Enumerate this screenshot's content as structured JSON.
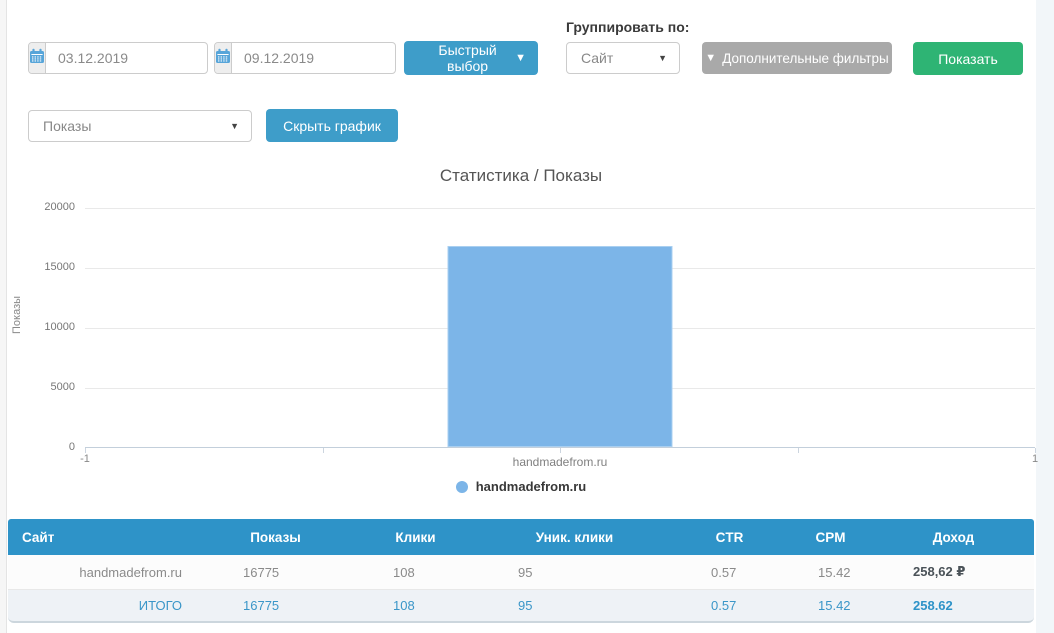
{
  "toolbar": {
    "date_from": "03.12.2019",
    "date_to": "09.12.2019",
    "quick_select": "Быстрый выбор",
    "group_by_label": "Группировать по:",
    "group_by_value": "Сайт",
    "additional_filters": "Дополнительные фильтры",
    "show": "Показать"
  },
  "chart_controls": {
    "metric": "Показы",
    "hide_chart": "Скрыть график"
  },
  "chart_data": {
    "type": "bar",
    "title": "Статистика / Показы",
    "ylabel": "Показы",
    "categories": [
      "handmadefrom.ru"
    ],
    "values": [
      16775
    ],
    "series": [
      {
        "name": "handmadefrom.ru",
        "values": [
          16775
        ],
        "color": "#7cb5e8"
      }
    ],
    "ylim": [
      0,
      20000
    ],
    "ytick_labels": [
      "20000",
      "15000",
      "10000",
      "5000",
      "0"
    ],
    "xlim": [
      -1,
      1
    ],
    "x_min_label": "-1",
    "x_max_label": "1",
    "grid": true,
    "legend_position": "bottom",
    "legend": [
      {
        "label": "handmadefrom.ru",
        "color": "#7cb5e8"
      }
    ]
  },
  "table": {
    "headers": {
      "site": "Сайт",
      "shows": "Показы",
      "clicks": "Клики",
      "unique_clicks": "Уник. клики",
      "ctr": "CTR",
      "cpm": "CPM",
      "income": "Доход"
    },
    "rows": [
      {
        "site": "handmadefrom.ru",
        "shows": "16775",
        "clicks": "108",
        "unique_clicks": "95",
        "ctr": "0.57",
        "cpm": "15.42",
        "income": "258,62 ₽"
      }
    ],
    "total": {
      "site": "ИТОГО",
      "shows": "16775",
      "clicks": "108",
      "unique_clicks": "95",
      "ctr": "0.57",
      "cpm": "15.42",
      "income": "258.62"
    }
  },
  "colors": {
    "accent_blue": "#3e9dc9",
    "green_button": "#2eb474",
    "gray_button": "#a9a9a9",
    "table_header": "#2e93c8",
    "bar": "#7cb5e8",
    "total_row_text": "#3a96c8",
    "calendar_icon": "#57a5d9"
  }
}
